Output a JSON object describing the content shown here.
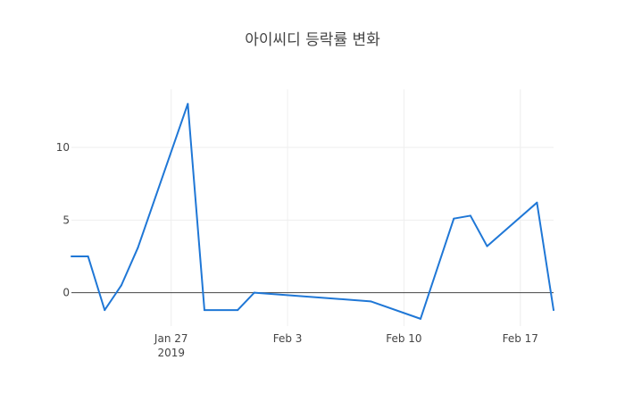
{
  "chart_data": {
    "type": "line",
    "title": "아이씨디 등락률 변화",
    "xlabel": "",
    "ylabel": "",
    "x_type": "date",
    "xlim": [
      "2019-01-21",
      "2019-02-19"
    ],
    "ylim": [
      -2.3,
      14.0
    ],
    "y_ticks": [
      0,
      5,
      10
    ],
    "x_ticks": [
      {
        "date": "2019-01-27",
        "label": "Jan 27",
        "sublabel": "2019"
      },
      {
        "date": "2019-02-03",
        "label": "Feb 3",
        "sublabel": ""
      },
      {
        "date": "2019-02-10",
        "label": "Feb 10",
        "sublabel": ""
      },
      {
        "date": "2019-02-17",
        "label": "Feb 17",
        "sublabel": ""
      }
    ],
    "grid": true,
    "series": [
      {
        "color": "#1f77d6",
        "points": [
          {
            "x": "2019-01-21",
            "y": 2.5
          },
          {
            "x": "2019-01-22",
            "y": 2.5
          },
          {
            "x": "2019-01-23",
            "y": -1.2
          },
          {
            "x": "2019-01-24",
            "y": 0.5
          },
          {
            "x": "2019-01-25",
            "y": 3.1
          },
          {
            "x": "2019-01-28",
            "y": 13.0
          },
          {
            "x": "2019-01-29",
            "y": -1.2
          },
          {
            "x": "2019-01-31",
            "y": -1.2
          },
          {
            "x": "2019-02-01",
            "y": 0.0
          },
          {
            "x": "2019-02-08",
            "y": -0.6
          },
          {
            "x": "2019-02-11",
            "y": -1.8
          },
          {
            "x": "2019-02-13",
            "y": 5.1
          },
          {
            "x": "2019-02-14",
            "y": 5.3
          },
          {
            "x": "2019-02-15",
            "y": 3.2
          },
          {
            "x": "2019-02-18",
            "y": 6.2
          },
          {
            "x": "2019-02-19",
            "y": -1.2
          }
        ]
      }
    ]
  }
}
